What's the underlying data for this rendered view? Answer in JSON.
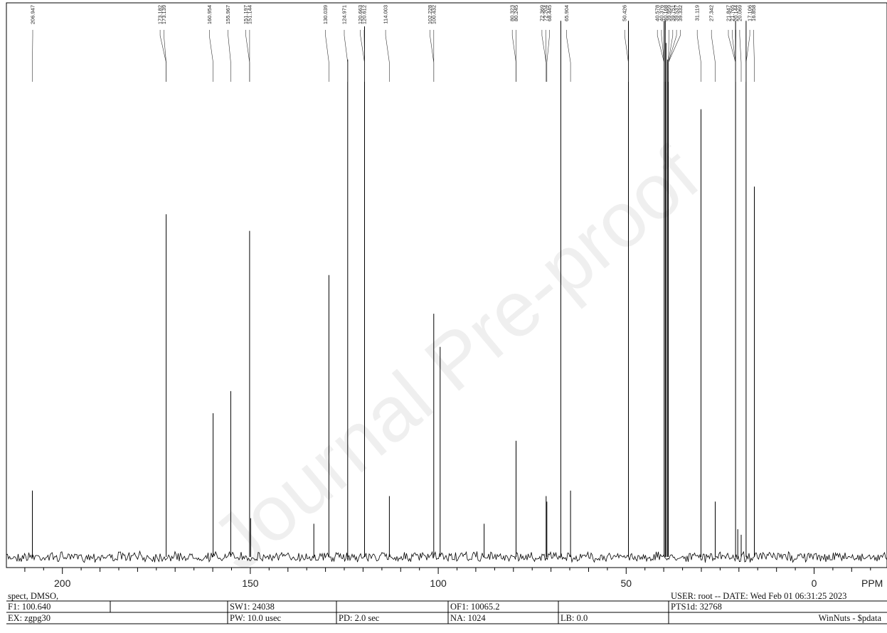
{
  "watermark": "Journal Pre-proof",
  "chart_data": {
    "type": "line",
    "title": "",
    "xlabel": "PPM",
    "ylabel": "",
    "xlim": [
      214.9,
      -19.4
    ],
    "x_reversed": true,
    "ticks": [
      200,
      150,
      100,
      50,
      0
    ],
    "tick_labels": [
      "200",
      "150",
      "100",
      "50",
      "0"
    ],
    "peaks": [
      {
        "ppm": 208.0,
        "height": 0.12
      },
      {
        "ppm": 172.4,
        "height": 0.62
      },
      {
        "ppm": 159.9,
        "height": 0.26
      },
      {
        "ppm": 155.2,
        "height": 0.3
      },
      {
        "ppm": 150.2,
        "height": 0.59
      },
      {
        "ppm": 149.9,
        "height": 0.07
      },
      {
        "ppm": 133.1,
        "height": 0.06
      },
      {
        "ppm": 129.1,
        "height": 0.51
      },
      {
        "ppm": 124.1,
        "height": 0.9
      },
      {
        "ppm": 119.6,
        "height": 0.96
      },
      {
        "ppm": 113.0,
        "height": 0.11
      },
      {
        "ppm": 101.2,
        "height": 0.44
      },
      {
        "ppm": 99.5,
        "height": 0.38
      },
      {
        "ppm": 87.8,
        "height": 0.06
      },
      {
        "ppm": 79.3,
        "height": 0.21
      },
      {
        "ppm": 71.3,
        "height": 0.11
      },
      {
        "ppm": 71.1,
        "height": 0.1
      },
      {
        "ppm": 67.4,
        "height": 0.97
      },
      {
        "ppm": 64.8,
        "height": 0.12
      },
      {
        "ppm": 49.4,
        "height": 0.97
      },
      {
        "ppm": 39.9,
        "height": 0.97
      },
      {
        "ppm": 39.6,
        "height": 0.97
      },
      {
        "ppm": 39.4,
        "height": 0.93
      },
      {
        "ppm": 39.0,
        "height": 0.9
      },
      {
        "ppm": 38.8,
        "height": 0.88
      },
      {
        "ppm": 30.1,
        "height": 0.81
      },
      {
        "ppm": 26.3,
        "height": 0.1
      },
      {
        "ppm": 20.9,
        "height": 0.97
      },
      {
        "ppm": 20.3,
        "height": 0.05
      },
      {
        "ppm": 19.4,
        "height": 0.04
      },
      {
        "ppm": 18.1,
        "height": 0.97
      },
      {
        "ppm": 15.9,
        "height": 0.67
      }
    ],
    "peak_labels": [
      {
        "text": "206.947",
        "ppm": 207.9
      },
      {
        "text": "173.182",
        "ppm": 174.0
      },
      {
        "text": "173.139",
        "ppm": 173.0
      },
      {
        "text": "160.954",
        "ppm": 160.9
      },
      {
        "text": "155.967",
        "ppm": 155.9
      },
      {
        "text": "151.197",
        "ppm": 151.2
      },
      {
        "text": "151.144",
        "ppm": 150.2
      },
      {
        "text": "130.039",
        "ppm": 130.0
      },
      {
        "text": "124.971",
        "ppm": 125.0
      },
      {
        "text": "120.663",
        "ppm": 120.7
      },
      {
        "text": "120.612",
        "ppm": 119.7
      },
      {
        "text": "114.003",
        "ppm": 114.0
      },
      {
        "text": "102.228",
        "ppm": 102.2
      },
      {
        "text": "100.432",
        "ppm": 101.2
      },
      {
        "text": "80.323",
        "ppm": 80.3
      },
      {
        "text": "80.245",
        "ppm": 79.3
      },
      {
        "text": "72.369",
        "ppm": 72.4
      },
      {
        "text": "72.204",
        "ppm": 71.4
      },
      {
        "text": "68.445",
        "ppm": 70.4
      },
      {
        "text": "65.904",
        "ppm": 65.9
      },
      {
        "text": "50.426",
        "ppm": 50.4
      },
      {
        "text": "40.578",
        "ppm": 41.7
      },
      {
        "text": "40.376",
        "ppm": 40.6
      },
      {
        "text": "40.168",
        "ppm": 39.6
      },
      {
        "text": "39.959",
        "ppm": 38.6
      },
      {
        "text": "39.751",
        "ppm": 37.6
      },
      {
        "text": "39.537",
        "ppm": 36.6
      },
      {
        "text": "39.332",
        "ppm": 35.6
      },
      {
        "text": "31.119",
        "ppm": 31.1
      },
      {
        "text": "27.342",
        "ppm": 27.3
      },
      {
        "text": "21.847",
        "ppm": 22.8
      },
      {
        "text": "21.765",
        "ppm": 21.8
      },
      {
        "text": "20.144",
        "ppm": 20.8
      },
      {
        "text": "20.069",
        "ppm": 19.8
      },
      {
        "text": "17.106",
        "ppm": 17.1
      },
      {
        "text": "16.858",
        "ppm": 16.1
      }
    ]
  },
  "footer": {
    "row1": {
      "left": "spect, DMSO,",
      "right": "USER: root -- DATE:  Wed Feb 01 06:31:25 2023"
    },
    "row2": {
      "f1": "F1: 100.640",
      "sw1": "SW1: 24038",
      "of1": "OF1: 10065.2",
      "pts": "PTS1d: 32768"
    },
    "row3": {
      "ex": "EX: zgpg30",
      "pw": "PW: 10.0 usec",
      "pd": "PD: 2.0  sec",
      "na": "NA: 1024",
      "lb": "LB: 0.0",
      "software": "WinNuts - $pdata"
    }
  }
}
